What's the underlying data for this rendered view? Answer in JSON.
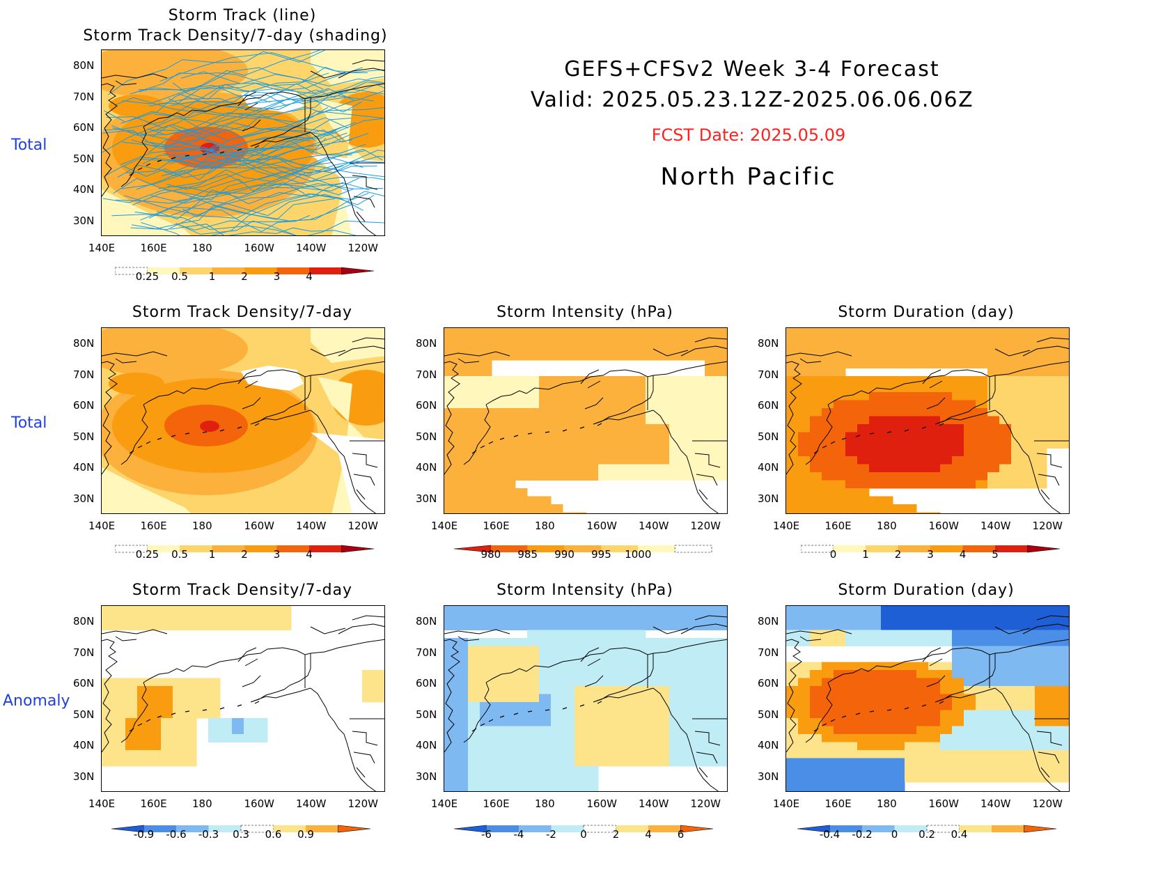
{
  "header": {
    "line1": "GEFS+CFSv2 Week 3-4 Forecast",
    "line2": "Valid: 2025.05.23.12Z-2025.06.06.06Z",
    "fcst": "FCST Date: 2025.05.09",
    "region": "North Pacific",
    "fcst_color": "#ff2020"
  },
  "row_labels": {
    "row1": "Total",
    "row2": "Total",
    "row3": "Anomaly"
  },
  "lat_ticks": [
    "80N",
    "70N",
    "60N",
    "50N",
    "40N",
    "30N"
  ],
  "lon_ticks": [
    "140E",
    "160E",
    "180",
    "160W",
    "140W",
    "120W"
  ],
  "panels": [
    {
      "id": "top",
      "title1": "Storm Track (line)",
      "title2": "Storm Track Density/7-day (shading)",
      "colorbar": [
        "0.25",
        "0.5",
        "1",
        "2",
        "3",
        "4"
      ],
      "palette": "warm"
    },
    {
      "id": "r2c1",
      "title": "Storm Track Density/7-day",
      "colorbar": [
        "0.25",
        "0.5",
        "1",
        "2",
        "3",
        "4"
      ],
      "palette": "warm"
    },
    {
      "id": "r2c2",
      "title": "Storm Intensity (hPa)",
      "colorbar": [
        "980",
        "985",
        "990",
        "995",
        "1000"
      ],
      "palette": "warm_rev"
    },
    {
      "id": "r2c3",
      "title": "Storm Duration (day)",
      "colorbar": [
        "0",
        "1",
        "2",
        "3",
        "4",
        "5"
      ],
      "palette": "warm"
    },
    {
      "id": "r3c1",
      "title": "Storm Track Density/7-day",
      "colorbar": [
        "-0.9",
        "-0.6",
        "-0.3",
        "0.3",
        "0.6",
        "0.9"
      ],
      "palette": "div"
    },
    {
      "id": "r3c2",
      "title": "Storm Intensity (hPa)",
      "colorbar": [
        "-6",
        "-4",
        "-2",
        "0",
        "2",
        "4",
        "6"
      ],
      "palette": "div"
    },
    {
      "id": "r3c3",
      "title": "Storm Duration (day)",
      "colorbar": [
        "-0.4",
        "-0.2",
        "0",
        "0.2",
        "0.4"
      ],
      "palette": "div"
    }
  ],
  "colors": {
    "warm": [
      "#fff7bc",
      "#fdd56a",
      "#fbb13c",
      "#f99c10",
      "#f4640a",
      "#e0200e",
      "#a80010"
    ],
    "blue": [
      "#c0ecf6",
      "#7fb9f2",
      "#4b8ee8",
      "#1f5fd6"
    ],
    "coast": "#000000",
    "track": "#1a9be0"
  }
}
